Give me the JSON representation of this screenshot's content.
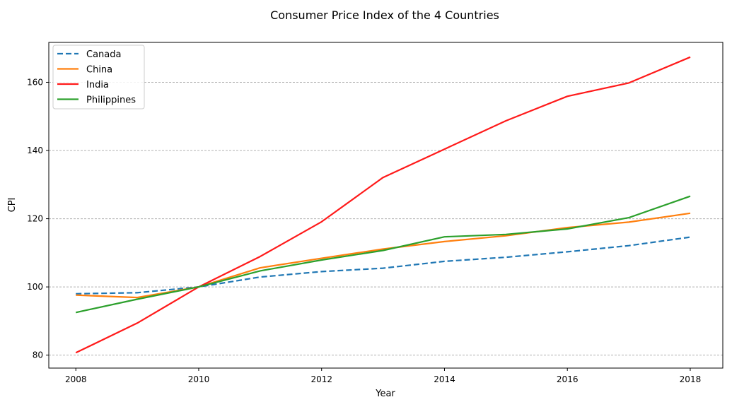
{
  "chart_data": {
    "type": "line",
    "title": "Consumer Price Index of the 4 Countries",
    "xlabel": "Year",
    "ylabel": "CPI",
    "x": [
      2008,
      2009,
      2010,
      2011,
      2012,
      2013,
      2014,
      2015,
      2016,
      2017,
      2018
    ],
    "xticks": [
      2008,
      2010,
      2012,
      2014,
      2016,
      2018
    ],
    "yticks": [
      80,
      100,
      120,
      140,
      160
    ],
    "xlim": [
      2007.56,
      2018.53
    ],
    "ylim": [
      76.2,
      171.7
    ],
    "grid": "y-axis dashed",
    "legend_position": "top-left",
    "series": [
      {
        "name": "Canada",
        "color": "#1f77b4",
        "style": "dashed",
        "values": [
          98.0,
          98.3,
          100.0,
          102.9,
          104.5,
          105.5,
          107.5,
          108.7,
          110.3,
          112.1,
          114.6
        ]
      },
      {
        "name": "China",
        "color": "#ff7f0e",
        "style": "solid",
        "values": [
          97.6,
          96.9,
          100.0,
          105.6,
          108.4,
          111.1,
          113.3,
          115.0,
          117.4,
          119.0,
          121.6
        ]
      },
      {
        "name": "India",
        "color": "#ff1a1a",
        "style": "solid",
        "values": [
          80.7,
          89.4,
          100.0,
          108.9,
          119.1,
          132.1,
          140.4,
          148.7,
          155.9,
          159.8,
          167.4
        ]
      },
      {
        "name": "Philippines",
        "color": "#2ca02c",
        "style": "solid",
        "values": [
          92.5,
          96.4,
          100.0,
          104.7,
          107.9,
          110.7,
          114.7,
          115.4,
          117.0,
          120.3,
          126.6
        ]
      }
    ]
  }
}
